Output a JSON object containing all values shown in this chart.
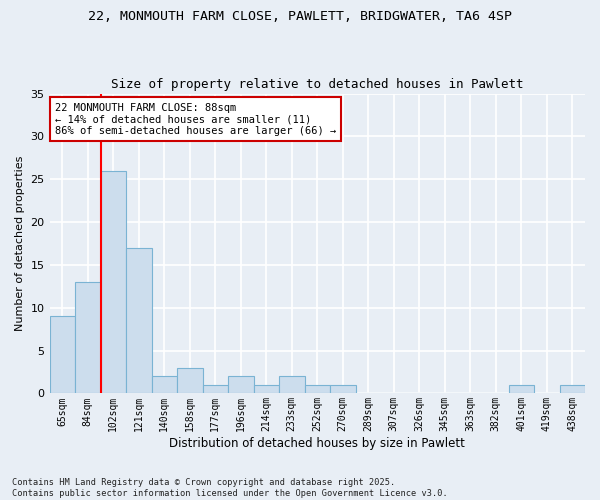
{
  "title_line1": "22, MONMOUTH FARM CLOSE, PAWLETT, BRIDGWATER, TA6 4SP",
  "title_line2": "Size of property relative to detached houses in Pawlett",
  "xlabel": "Distribution of detached houses by size in Pawlett",
  "ylabel": "Number of detached properties",
  "categories": [
    "65sqm",
    "84sqm",
    "102sqm",
    "121sqm",
    "140sqm",
    "158sqm",
    "177sqm",
    "196sqm",
    "214sqm",
    "233sqm",
    "252sqm",
    "270sqm",
    "289sqm",
    "307sqm",
    "326sqm",
    "345sqm",
    "363sqm",
    "382sqm",
    "401sqm",
    "419sqm",
    "438sqm"
  ],
  "values": [
    9,
    13,
    26,
    17,
    2,
    3,
    1,
    2,
    1,
    2,
    1,
    1,
    0,
    0,
    0,
    0,
    0,
    0,
    1,
    0,
    1
  ],
  "bar_color": "#ccdded",
  "bar_edge_color": "#7ab3d3",
  "red_line_x": 1.5,
  "annotation_line1": "22 MONMOUTH FARM CLOSE: 88sqm",
  "annotation_line2": "← 14% of detached houses are smaller (11)",
  "annotation_line3": "86% of semi-detached houses are larger (66) →",
  "annotation_box_color": "#ffffff",
  "annotation_box_edge": "#cc0000",
  "ylim": [
    0,
    35
  ],
  "yticks": [
    0,
    5,
    10,
    15,
    20,
    25,
    30,
    35
  ],
  "footer": "Contains HM Land Registry data © Crown copyright and database right 2025.\nContains public sector information licensed under the Open Government Licence v3.0.",
  "bg_color": "#e8eef5",
  "plot_bg_color": "#e8eef5",
  "grid_color": "#ffffff"
}
